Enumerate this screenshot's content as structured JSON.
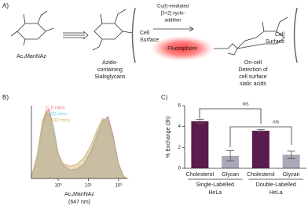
{
  "panels": {
    "a": "A)",
    "b": "B)",
    "c": "C)"
  },
  "scheme": {
    "start_label": "Ac₄ManNAz",
    "intermediate_label": [
      "Azido-",
      "containing",
      "Sialoglycans"
    ],
    "reaction": [
      "Cu(I)-mediated",
      "[3+2] cyclo-",
      "addition"
    ],
    "cell_surface_1": [
      "Cell",
      "Surface"
    ],
    "fluorophore": "Fluorophore",
    "cell_surface_2": [
      "Cell",
      "Surface"
    ],
    "product_label": [
      "On-cell",
      "Detection of",
      "cell surface",
      "sialic acids"
    ]
  },
  "chart_data": [
    {
      "type": "area",
      "xscale": "log",
      "xlabel": "Ac₄ManNAz",
      "xunit": "(647 nm)",
      "legend": "upper left",
      "x": [
        0.13,
        0.2,
        0.3,
        0.4,
        0.5,
        0.7,
        1,
        1.5,
        2.5,
        4,
        7,
        12,
        20,
        30,
        45,
        65,
        100,
        150,
        195
      ],
      "xlim": [
        0.13,
        195
      ],
      "xticks": [
        {
          "value": 1,
          "label": "10⁰"
        },
        {
          "value": 10,
          "label": "10¹"
        },
        {
          "value": 100,
          "label": "10²"
        }
      ],
      "ylim": [
        0,
        100
      ],
      "series": [
        {
          "name": "t= 0 mins",
          "color": "#e8767c",
          "values": [
            2,
            30,
            75,
            92,
            95,
            70,
            35,
            18,
            12,
            12,
            18,
            35,
            60,
            78,
            85,
            60,
            20,
            3,
            0
          ]
        },
        {
          "name": "t= 90 mins",
          "color": "#7fd0e0",
          "values": [
            2,
            28,
            70,
            88,
            90,
            68,
            33,
            17,
            12,
            13,
            20,
            38,
            62,
            80,
            82,
            55,
            18,
            3,
            0
          ]
        },
        {
          "name": "t= 180 mins",
          "color": "#d8b16a",
          "values": [
            2,
            32,
            78,
            93,
            85,
            60,
            30,
            20,
            17,
            19,
            28,
            45,
            68,
            82,
            78,
            50,
            15,
            2,
            0
          ]
        }
      ]
    },
    {
      "type": "bar",
      "ylabel": "% Exchange (3h)",
      "categories": [
        "Cholesterol",
        "Glycan",
        "Cholesterol",
        "Glycan"
      ],
      "values": [
        4.5,
        1.2,
        3.6,
        1.3
      ],
      "errors": [
        0.2,
        0.5,
        0.1,
        0.35
      ],
      "colors": [
        "#5b1b4c",
        "#a9a9b9",
        "#5b1b4c",
        "#a9a9b9"
      ],
      "ylim": [
        0,
        6
      ],
      "yticks": [
        0,
        2,
        4,
        6
      ],
      "groups": [
        [
          "Single-Labelled",
          "HeLa"
        ],
        [
          "Double-Labelled",
          "HeLa"
        ]
      ],
      "annotations": [
        "n/s",
        "n/s"
      ]
    }
  ]
}
